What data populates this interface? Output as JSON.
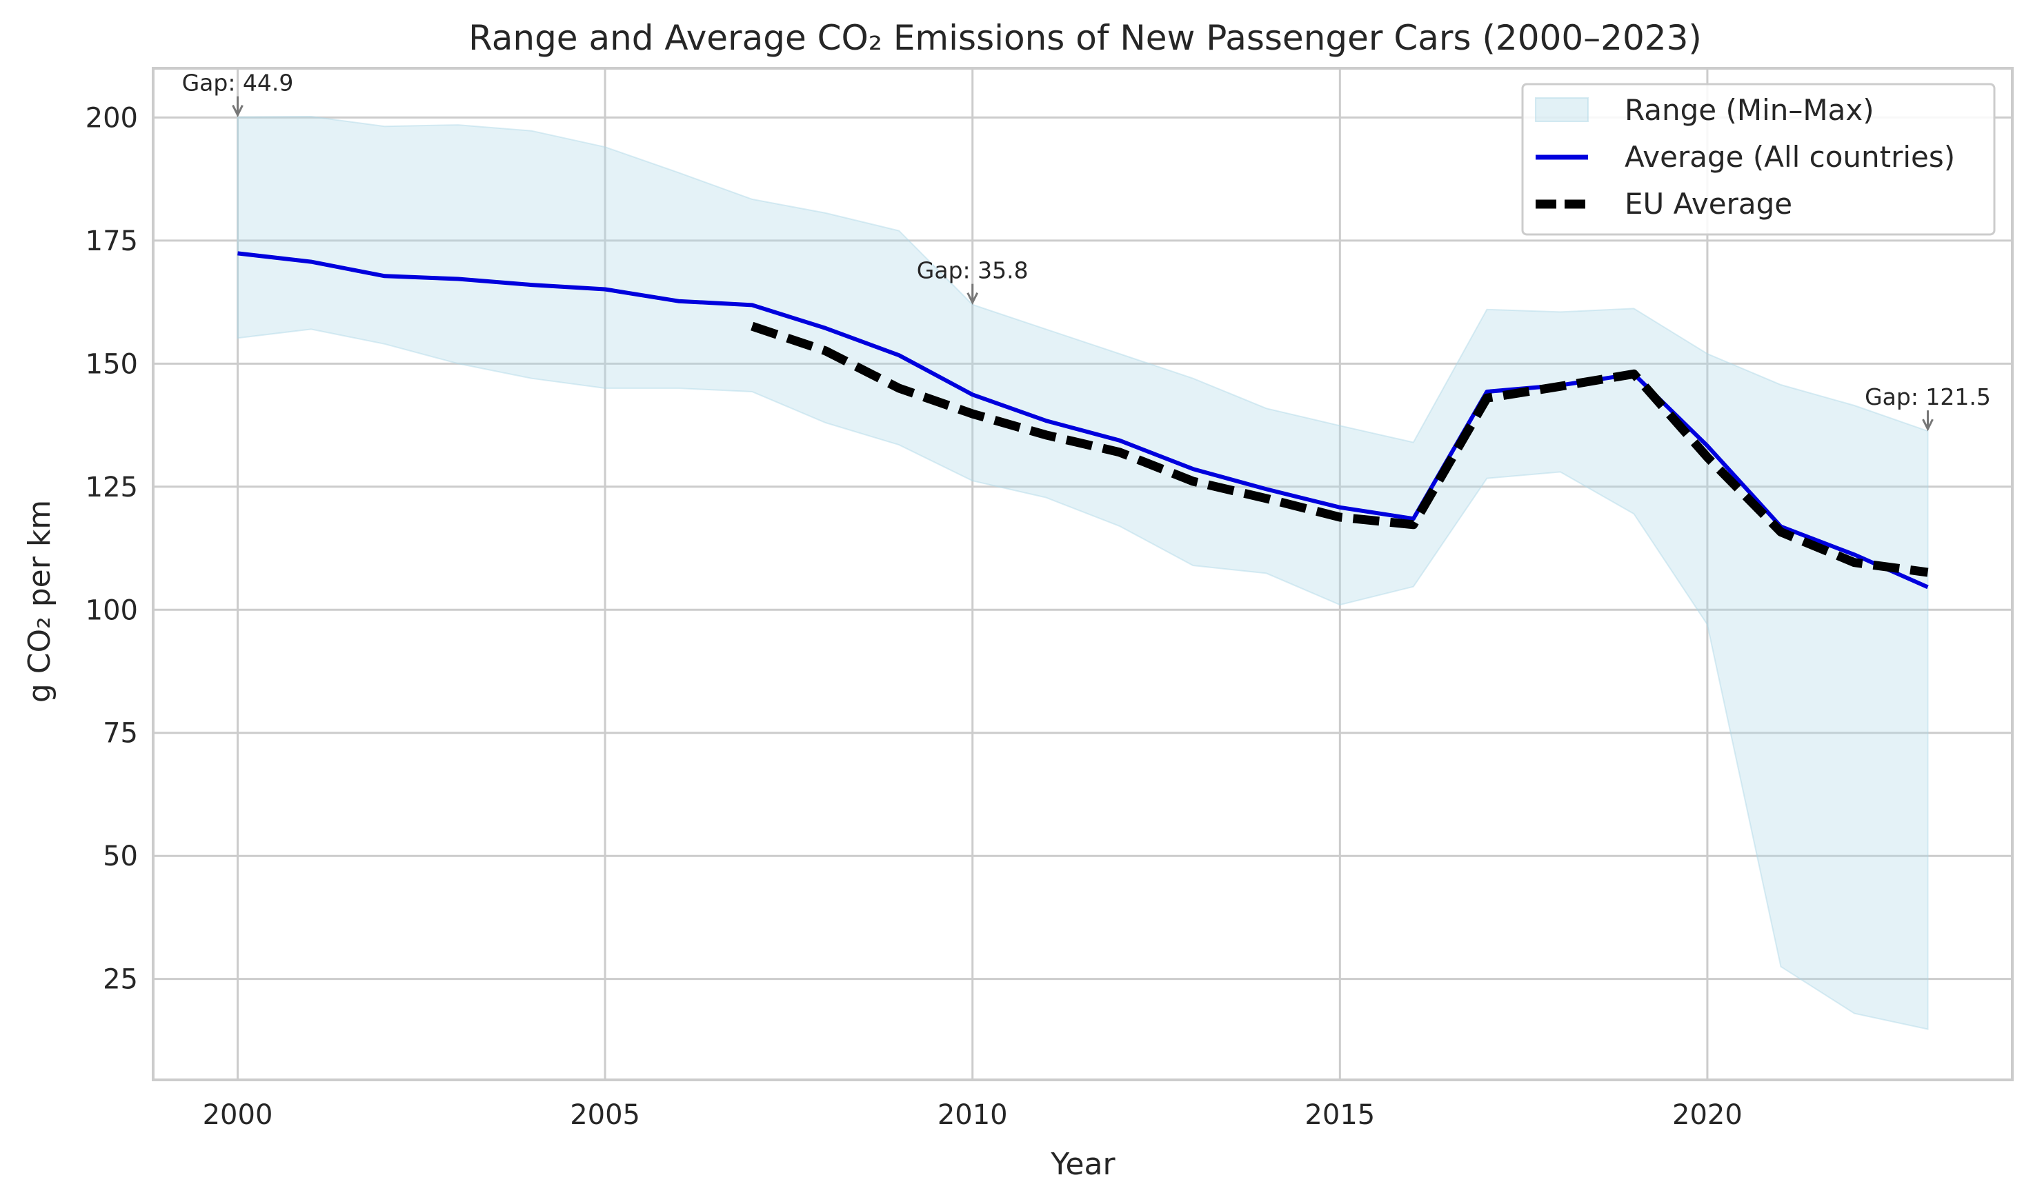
{
  "chart_data": {
    "type": "line",
    "title": "Range and Average CO₂ Emissions of New Passenger Cars (2000–2023)",
    "xlabel": "Year",
    "ylabel": "g CO₂ per km",
    "xlim": [
      1998.85,
      2024.15
    ],
    "ylim": [
      4.5,
      210
    ],
    "x_ticks": [
      2000,
      2005,
      2010,
      2015,
      2020
    ],
    "y_ticks": [
      25,
      50,
      75,
      100,
      125,
      150,
      175,
      200
    ],
    "grid": true,
    "legend_position": "top-right",
    "x": [
      2000,
      2001,
      2002,
      2003,
      2004,
      2005,
      2006,
      2007,
      2008,
      2009,
      2010,
      2011,
      2012,
      2013,
      2014,
      2015,
      2016,
      2017,
      2018,
      2019,
      2020,
      2021,
      2022,
      2023
    ],
    "range": {
      "name": "Range (Min–Max)",
      "color": "#add8e6",
      "max": [
        200.1,
        200.2,
        198.2,
        198.5,
        197.3,
        194.0,
        188.8,
        183.4,
        180.6,
        177.0,
        162.0,
        157.0,
        152.0,
        147.0,
        140.9,
        137.4,
        134.0,
        161.0,
        160.5,
        161.2,
        152.0,
        145.7,
        141.5,
        136.3
      ],
      "min": [
        155.2,
        157.0,
        154.0,
        150.0,
        147.0,
        145.0,
        145.0,
        144.3,
        138.0,
        133.5,
        126.2,
        122.8,
        117.0,
        109.0,
        107.4,
        101.0,
        104.7,
        126.7,
        128.0,
        119.5,
        97.0,
        27.5,
        18.0,
        14.8
      ]
    },
    "series": [
      {
        "name": "Average (All countries)",
        "color": "#0000dd",
        "style": "solid",
        "x": [
          2000,
          2001,
          2002,
          2003,
          2004,
          2005,
          2006,
          2007,
          2008,
          2009,
          2010,
          2011,
          2012,
          2013,
          2014,
          2015,
          2016,
          2017,
          2018,
          2019,
          2020,
          2021,
          2022,
          2023
        ],
        "values": [
          172.4,
          170.7,
          167.8,
          167.2,
          166.0,
          165.1,
          162.7,
          161.9,
          157.2,
          151.7,
          143.7,
          138.4,
          134.4,
          128.6,
          124.5,
          120.8,
          118.5,
          144.3,
          145.6,
          147.9,
          133.3,
          116.9,
          111.2,
          104.6
        ]
      },
      {
        "name": "EU Average",
        "color": "#000000",
        "style": "dashed",
        "x": [
          2007,
          2008,
          2009,
          2010,
          2011,
          2012,
          2013,
          2014,
          2015,
          2016,
          2017,
          2018,
          2019,
          2020,
          2021,
          2022,
          2023
        ],
        "values": [
          157.6,
          152.6,
          145.0,
          139.8,
          135.5,
          132.0,
          126.1,
          122.6,
          118.8,
          117.3,
          143.0,
          145.4,
          147.9,
          131.0,
          115.8,
          109.6,
          107.6
        ]
      }
    ],
    "annotations": [
      {
        "text": "Gap: 44.9",
        "x": 2000,
        "y": 200.1
      },
      {
        "text": "Gap: 35.8",
        "x": 2010,
        "y": 162.0
      },
      {
        "text": "Gap: 121.5",
        "x": 2023,
        "y": 136.3
      }
    ]
  }
}
